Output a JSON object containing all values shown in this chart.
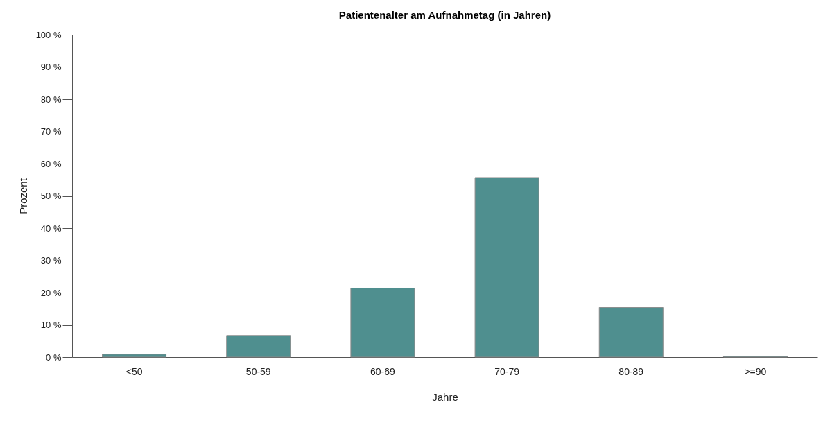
{
  "chart_data": {
    "type": "bar",
    "title": "Patientenalter am Aufnahmetag (in Jahren)",
    "xlabel": "Jahre",
    "ylabel": "Prozent",
    "categories": [
      "<50",
      "50-59",
      "60-69",
      "70-79",
      "80-89",
      ">=90"
    ],
    "values": [
      0.9,
      6.7,
      21.4,
      55.7,
      15.4,
      0.2
    ],
    "color": "#4f8f8f",
    "ylim": [
      0,
      100
    ],
    "yticks": [
      {
        "value": 0,
        "label": "0 %"
      },
      {
        "value": 10,
        "label": "10 %"
      },
      {
        "value": 20,
        "label": "20 %"
      },
      {
        "value": 30,
        "label": "30 %"
      },
      {
        "value": 40,
        "label": "40 %"
      },
      {
        "value": 50,
        "label": "50 %"
      },
      {
        "value": 60,
        "label": "60 %"
      },
      {
        "value": 70,
        "label": "70 %"
      },
      {
        "value": 80,
        "label": "80 %"
      },
      {
        "value": 90,
        "label": "90 %"
      },
      {
        "value": 100,
        "label": "100 %"
      }
    ],
    "grid": false
  }
}
